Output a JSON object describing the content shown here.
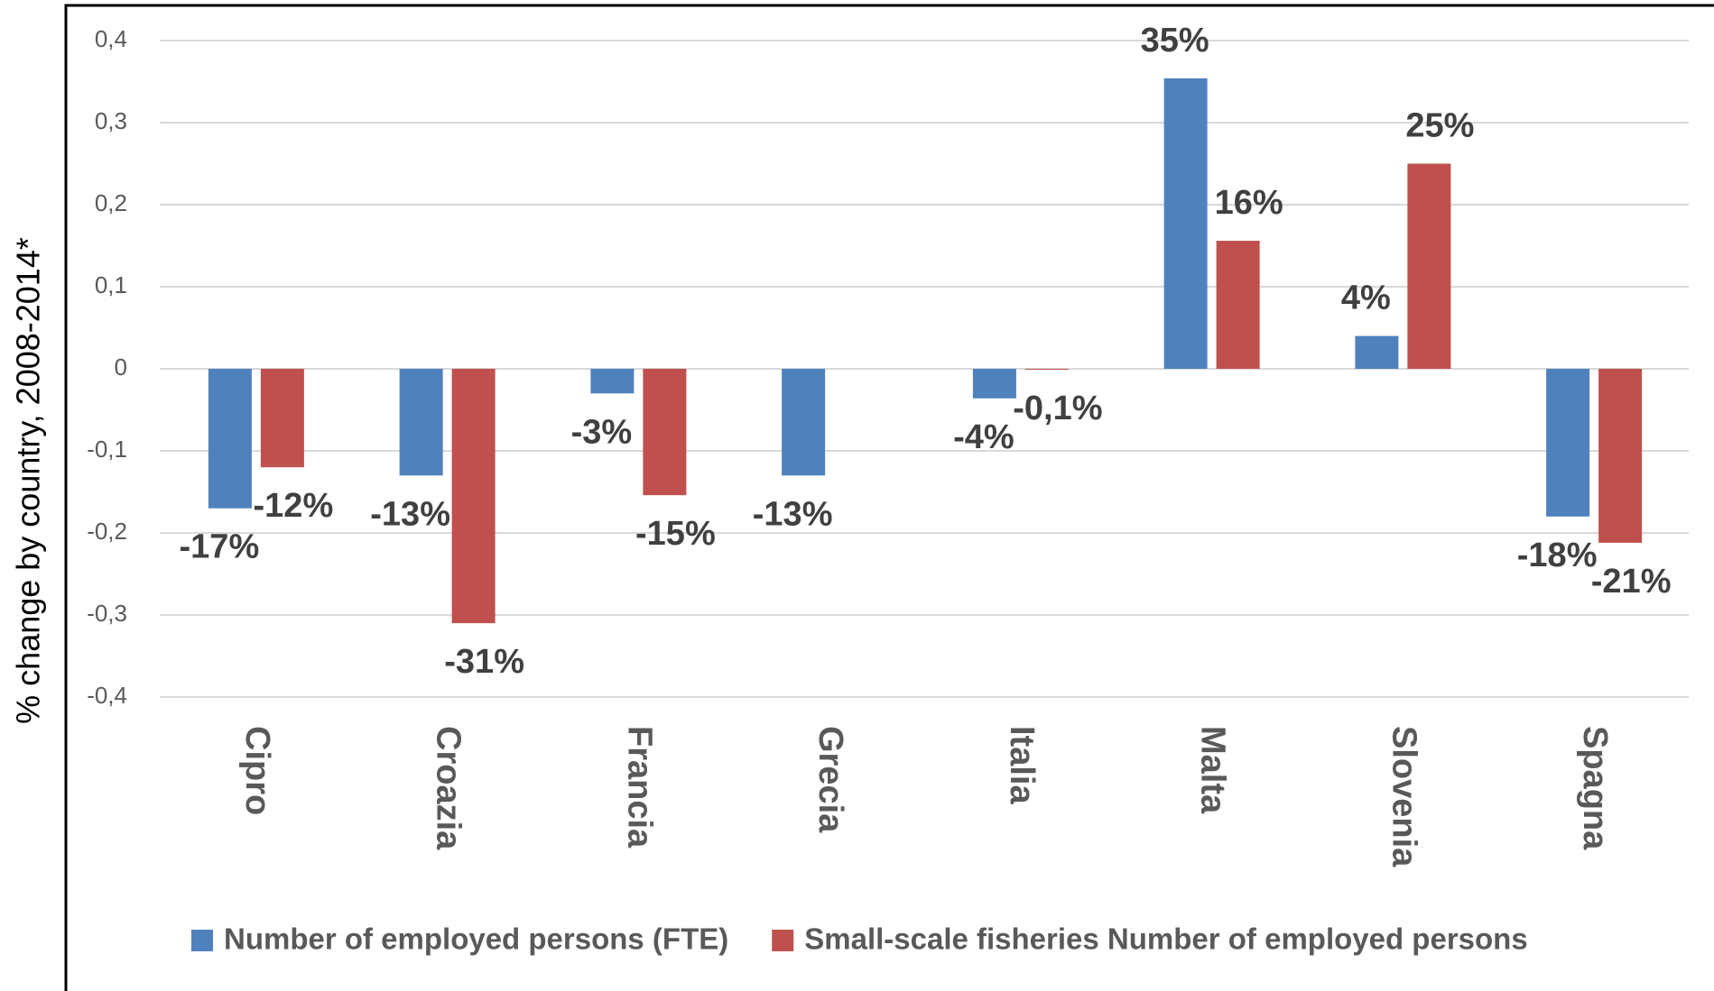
{
  "chart_data": {
    "type": "bar",
    "y_label": "% change by country, 2008-2014*",
    "categories": [
      "Cipro",
      "Croazia",
      "Francia",
      "Grecia",
      "Italia",
      "Malta",
      "Slovenia",
      "Spagna"
    ],
    "series": [
      {
        "name": "Number of employed persons (FTE)",
        "color": "#4f81bd",
        "values": [
          -0.17,
          -0.13,
          -0.03,
          -0.13,
          -0.036,
          0.354,
          0.04,
          -0.18
        ],
        "value_labels": [
          "-17%",
          "-13%",
          "-3%",
          "-13%",
          "-4%",
          "35%",
          "4%",
          "-18%"
        ]
      },
      {
        "name": "Small-scale fisheries Number of employed persons",
        "color": "#c0504d",
        "values": [
          -0.12,
          -0.31,
          -0.154,
          null,
          -0.001,
          0.156,
          0.25,
          -0.212
        ],
        "value_labels": [
          "-12%",
          "-31%",
          "-15%",
          null,
          "-0,1%",
          "16%",
          "25%",
          "-21%"
        ]
      }
    ],
    "ylim": [
      -0.4,
      0.4
    ],
    "yticks": [
      {
        "value": -0.4,
        "label": "-0,4"
      },
      {
        "value": -0.3,
        "label": "-0,3"
      },
      {
        "value": -0.2,
        "label": "-0,2"
      },
      {
        "value": -0.1,
        "label": "-0,1"
      },
      0,
      {
        "value": 0.1,
        "label": "0,1"
      },
      {
        "value": 0.2,
        "label": "0,2"
      },
      {
        "value": 0.3,
        "label": "0,3"
      },
      {
        "value": 0.4,
        "label": "0,4"
      }
    ],
    "grid": true,
    "legend": "bottom"
  }
}
